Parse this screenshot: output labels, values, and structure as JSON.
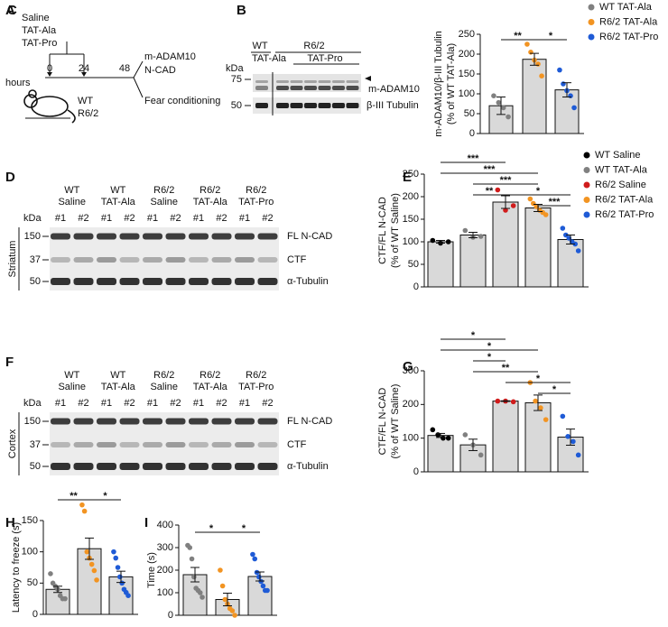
{
  "panels": {
    "A": {
      "label": "A",
      "treatments": [
        "Saline",
        "TAT-Ala",
        "TAT-Pro"
      ],
      "axis_label": "hours",
      "times": [
        0,
        24,
        48
      ],
      "outcomes": [
        "m-ADAM10",
        "N-CAD",
        "Fear conditioning"
      ],
      "genotypes": [
        "WT",
        "R6/2"
      ]
    },
    "B": {
      "label": "B",
      "groups": [
        "WT",
        "R6/2"
      ],
      "treatments": [
        "TAT-Ala",
        "TAT-Pro"
      ],
      "kda": "kDa",
      "markers": [
        75,
        50
      ],
      "bands": [
        "m-ADAM10",
        "β-III Tubulin"
      ]
    },
    "D": {
      "label": "D",
      "region": "Striatum",
      "groups": [
        {
          "genotype": "WT",
          "treatment": "Saline"
        },
        {
          "genotype": "WT",
          "treatment": "TAT-Ala"
        },
        {
          "genotype": "R6/2",
          "treatment": "Saline"
        },
        {
          "genotype": "R6/2",
          "treatment": "TAT-Ala"
        },
        {
          "genotype": "R6/2",
          "treatment": "TAT-Pro"
        }
      ],
      "lanes": [
        "#1",
        "#2"
      ],
      "kda": "kDa",
      "markers": [
        150,
        37,
        50
      ],
      "bands": [
        "FL N-CAD",
        "CTF",
        "α-Tubulin"
      ]
    },
    "F": {
      "label": "F",
      "region": "Cortex",
      "groups": [
        {
          "genotype": "WT",
          "treatment": "Saline"
        },
        {
          "genotype": "WT",
          "treatment": "TAT-Ala"
        },
        {
          "genotype": "R6/2",
          "treatment": "Saline"
        },
        {
          "genotype": "R6/2",
          "treatment": "TAT-Ala"
        },
        {
          "genotype": "R6/2",
          "treatment": "TAT-Pro"
        }
      ],
      "lanes": [
        "#1",
        "#2"
      ],
      "kda": "kDa",
      "markers": [
        150,
        37,
        50
      ],
      "bands": [
        "FL N-CAD",
        "CTF",
        "α-Tubulin"
      ]
    }
  },
  "chart_data": [
    {
      "type": "bar",
      "label": "C",
      "ylabel": [
        "m-ADAM10/β-III Tubulin",
        "(% of WT TAT-Ala)"
      ],
      "ylim": [
        0,
        250
      ],
      "yticks": [
        0,
        50,
        100,
        150,
        200,
        250
      ],
      "legend": true,
      "series": [
        {
          "name": "WT TAT-Ala",
          "color": "#808080",
          "mean": 70,
          "sem": 22,
          "points": [
            95,
            78,
            65,
            42
          ]
        },
        {
          "name": "R6/2 TAT-Ala",
          "color": "#f29422",
          "mean": 187,
          "sem": 15,
          "points": [
            225,
            205,
            185,
            175,
            145
          ]
        },
        {
          "name": "R6/2 TAT-Pro",
          "color": "#1f5bd6",
          "mean": 110,
          "sem": 18,
          "points": [
            160,
            125,
            108,
            95,
            65
          ]
        }
      ],
      "significance": [
        {
          "bars": [
            0,
            1
          ],
          "label": "**"
        },
        {
          "bars": [
            1,
            2
          ],
          "label": "*"
        }
      ]
    },
    {
      "type": "bar",
      "label": "E",
      "ylabel": [
        "CTF/FL N-CAD",
        "(% of WT Saline)"
      ],
      "ylim": [
        0,
        250
      ],
      "yticks": [
        0,
        50,
        100,
        150,
        200,
        250
      ],
      "legend": true,
      "series": [
        {
          "name": "WT Saline",
          "color": "#000000",
          "mean": 100,
          "sem": 3,
          "points": [
            103,
            97,
            100
          ]
        },
        {
          "name": "WT TAT-Ala",
          "color": "#808080",
          "mean": 115,
          "sem": 6,
          "points": [
            125,
            110,
            112
          ]
        },
        {
          "name": "R6/2 Saline",
          "color": "#d01c1c",
          "mean": 188,
          "sem": 14,
          "points": [
            215,
            170,
            180
          ]
        },
        {
          "name": "R6/2 TAT-Ala",
          "color": "#f29422",
          "mean": 175,
          "sem": 8,
          "points": [
            195,
            185,
            178,
            170,
            165,
            160
          ]
        },
        {
          "name": "R6/2 TAT-Pro",
          "color": "#1f5bd6",
          "mean": 105,
          "sem": 10,
          "points": [
            130,
            115,
            108,
            100,
            95,
            80
          ]
        }
      ],
      "significance": [
        {
          "bars": [
            0,
            2
          ],
          "label": "***"
        },
        {
          "bars": [
            0,
            3
          ],
          "label": "***"
        },
        {
          "bars": [
            1,
            3
          ],
          "label": "***"
        },
        {
          "bars": [
            1,
            2
          ],
          "label": "**"
        },
        {
          "bars": [
            2,
            4
          ],
          "label": "*"
        },
        {
          "bars": [
            3,
            4
          ],
          "label": "***"
        }
      ]
    },
    {
      "type": "bar",
      "label": "G",
      "ylabel": [
        "CTF/FL N-CAD",
        "(% of WT Saline)"
      ],
      "ylim": [
        0,
        300
      ],
      "yticks": [
        0,
        100,
        200,
        300
      ],
      "legend": false,
      "series": [
        {
          "color": "#000000",
          "mean": 108,
          "sem": 6,
          "points": [
            125,
            110,
            100,
            100
          ]
        },
        {
          "color": "#808080",
          "mean": 80,
          "sem": 17,
          "points": [
            110,
            80,
            50
          ]
        },
        {
          "color": "#d01c1c",
          "mean": 210,
          "sem": 1,
          "points": [
            210,
            210,
            208
          ]
        },
        {
          "color": "#f29422",
          "mean": 205,
          "sem": 23,
          "points": [
            265,
            210,
            190,
            155
          ]
        },
        {
          "color": "#1f5bd6",
          "mean": 103,
          "sem": 24,
          "points": [
            165,
            105,
            90,
            50
          ]
        }
      ],
      "significance": [
        {
          "bars": [
            0,
            2
          ],
          "label": "*"
        },
        {
          "bars": [
            0,
            3
          ],
          "label": "*"
        },
        {
          "bars": [
            1,
            2
          ],
          "label": "*"
        },
        {
          "bars": [
            1,
            3
          ],
          "label": "**"
        },
        {
          "bars": [
            2,
            4
          ],
          "label": "*"
        },
        {
          "bars": [
            3,
            4
          ],
          "label": "*"
        }
      ]
    },
    {
      "type": "bar",
      "label": "H",
      "ylabel": [
        "Latency to freeze (s)"
      ],
      "ylim": [
        0,
        150
      ],
      "yticks": [
        0,
        50,
        100,
        150
      ],
      "legend": false,
      "series": [
        {
          "color": "#808080",
          "mean": 40,
          "sem": 5,
          "points": [
            65,
            50,
            45,
            40,
            30,
            25,
            25
          ]
        },
        {
          "color": "#f29422",
          "mean": 105,
          "sem": 17,
          "points": [
            175,
            165,
            100,
            90,
            80,
            70,
            55
          ]
        },
        {
          "color": "#1f5bd6",
          "mean": 60,
          "sem": 9,
          "points": [
            100,
            90,
            75,
            60,
            50,
            40,
            35,
            30
          ]
        }
      ],
      "significance": [
        {
          "bars": [
            0,
            1
          ],
          "label": "**"
        },
        {
          "bars": [
            1,
            2
          ],
          "label": "*"
        }
      ]
    },
    {
      "type": "bar",
      "label": "I",
      "ylabel": [
        "Time (s)"
      ],
      "ylim": [
        0,
        400
      ],
      "yticks": [
        0,
        100,
        200,
        300,
        400
      ],
      "legend": false,
      "series": [
        {
          "color": "#808080",
          "mean": 180,
          "sem": 32,
          "points": [
            310,
            300,
            250,
            170,
            120,
            110,
            100,
            80
          ]
        },
        {
          "color": "#f29422",
          "mean": 70,
          "sem": 28,
          "points": [
            200,
            130,
            70,
            50,
            30,
            20,
            0
          ]
        },
        {
          "color": "#1f5bd6",
          "mean": 172,
          "sem": 20,
          "points": [
            270,
            250,
            190,
            170,
            150,
            130,
            110,
            110
          ]
        }
      ],
      "significance": [
        {
          "bars": [
            0,
            1
          ],
          "label": "*"
        },
        {
          "bars": [
            1,
            2
          ],
          "label": "*"
        }
      ]
    }
  ]
}
